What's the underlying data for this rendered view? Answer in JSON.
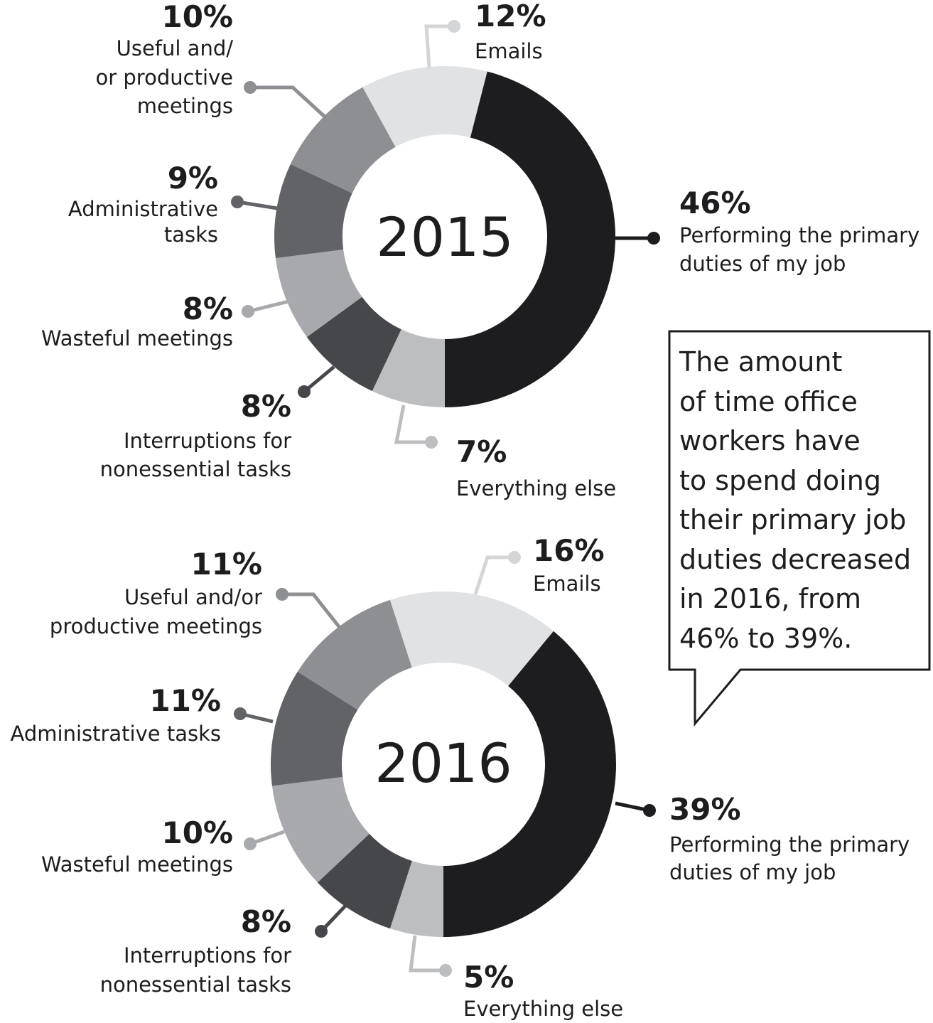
{
  "chart_data": [
    {
      "type": "donut",
      "center_label": "2015",
      "slices": [
        {
          "label_lines": [
            "Performing the primary",
            "duties of my job"
          ],
          "value": 46,
          "display": "46%",
          "color": "#1d1d1f"
        },
        {
          "label_lines": [
            "Everything else"
          ],
          "value": 7,
          "display": "7%",
          "color": "#bdbec0"
        },
        {
          "label_lines": [
            "Interruptions for",
            "nonessential tasks"
          ],
          "value": 8,
          "display": "8%",
          "color": "#46474a"
        },
        {
          "label_lines": [
            "Wasteful meetings"
          ],
          "value": 8,
          "display": "8%",
          "color": "#a8a9ac"
        },
        {
          "label_lines": [
            "Administrative",
            "tasks"
          ],
          "value": 9,
          "display": "9%",
          "color": "#626366"
        },
        {
          "label_lines": [
            "Useful and/",
            "or productive",
            "meetings"
          ],
          "value": 10,
          "display": "10%",
          "color": "#8e8f92"
        },
        {
          "label_lines": [
            "Emails"
          ],
          "value": 12,
          "display": "12%",
          "color": "#e1e2e4"
        }
      ]
    },
    {
      "type": "donut",
      "center_label": "2016",
      "slices": [
        {
          "label_lines": [
            "Performing the primary",
            "duties of my job"
          ],
          "value": 39,
          "display": "39%",
          "color": "#1d1d1f"
        },
        {
          "label_lines": [
            "Everything else"
          ],
          "value": 5,
          "display": "5%",
          "color": "#bdbec0"
        },
        {
          "label_lines": [
            "Interruptions for",
            "nonessential tasks"
          ],
          "value": 8,
          "display": "8%",
          "color": "#46474a"
        },
        {
          "label_lines": [
            "Wasteful meetings"
          ],
          "value": 10,
          "display": "10%",
          "color": "#a8a9ac"
        },
        {
          "label_lines": [
            "Administrative tasks"
          ],
          "value": 11,
          "display": "11%",
          "color": "#626366"
        },
        {
          "label_lines": [
            "Useful and/or",
            "productive meetings"
          ],
          "value": 11,
          "display": "11%",
          "color": "#8e8f92"
        },
        {
          "label_lines": [
            "Emails"
          ],
          "value": 16,
          "display": "16%",
          "color": "#e1e2e4"
        }
      ]
    }
  ],
  "callout": {
    "text": "The amount\nof time office\nworkers have\nto spend doing\ntheir primary job\nduties decreased\nin 2016, from\n46% to 39%."
  }
}
